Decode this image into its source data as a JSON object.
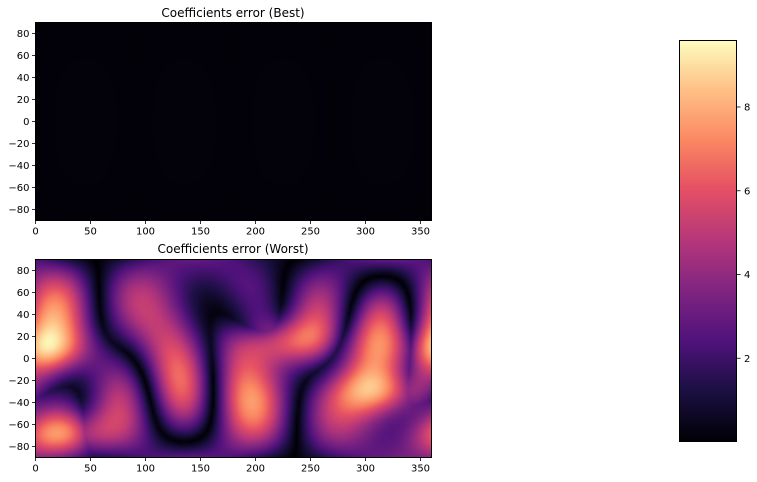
{
  "chart_data": [
    {
      "type": "heatmap",
      "title": "Coefficients error (Best)",
      "xlabel": "",
      "ylabel": "",
      "xlim": [
        0,
        360
      ],
      "ylim": [
        -90,
        90
      ],
      "xticks": [
        "0",
        "50",
        "100",
        "150",
        "200",
        "250",
        "300",
        "350"
      ],
      "yticks": [
        "80",
        "60",
        "40",
        "20",
        "0",
        "−20",
        "−40",
        "−60",
        "−80"
      ],
      "colormap": "magma",
      "value_range_estimate": [
        0,
        0.3
      ],
      "description_values": "near-uniform low error across the whole field"
    },
    {
      "type": "heatmap",
      "title": "Coefficients error (Worst)",
      "xlabel": "",
      "ylabel": "",
      "xlim": [
        0,
        360
      ],
      "ylim": [
        -90,
        90
      ],
      "xticks": [
        "0",
        "50",
        "100",
        "150",
        "200",
        "250",
        "300",
        "350"
      ],
      "yticks": [
        "80",
        "60",
        "40",
        "20",
        "0",
        "−20",
        "−40",
        "−60",
        "−80"
      ],
      "colormap": "magma",
      "value_range_estimate": [
        0,
        9.6
      ],
      "peaks": [
        {
          "lon": 25,
          "lat": -68,
          "value": 9.5
        },
        {
          "lon": 225,
          "lat": 16,
          "value": 8.0
        },
        {
          "lon": 320,
          "lat": -30,
          "value": 8.0
        },
        {
          "lon": 8,
          "lat": 8,
          "value": 6.5
        }
      ]
    }
  ],
  "colorbar": {
    "colormap": "magma",
    "min": 0,
    "max": 9.6,
    "ticks": [
      "2",
      "4",
      "6",
      "8"
    ],
    "tick_values": [
      2,
      4,
      6,
      8
    ]
  }
}
